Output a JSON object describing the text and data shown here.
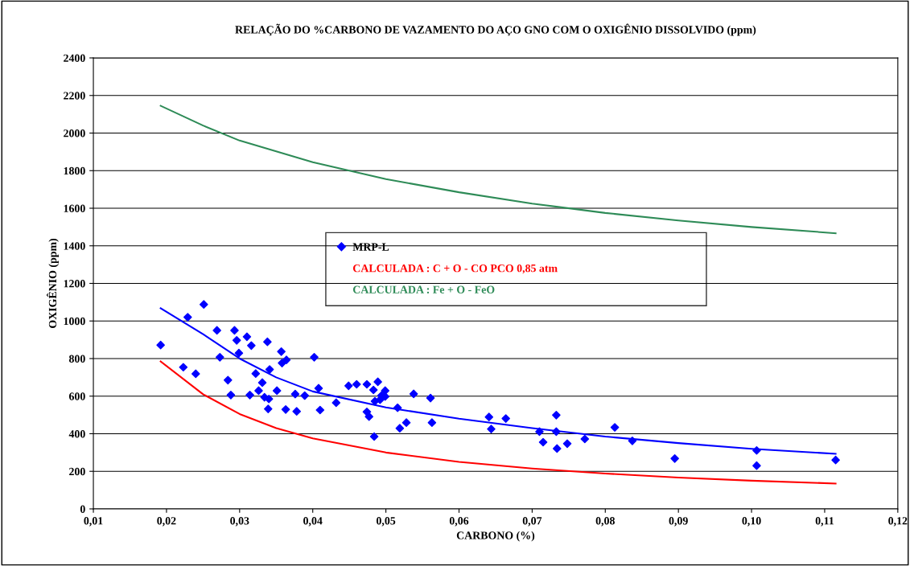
{
  "chart_data": {
    "type": "scatter",
    "title": "RELAÇÃO DO %CARBONO DE VAZAMENTO DO AÇO GNO COM O OXIGÊNIO DISSOLVIDO (ppm)",
    "xlabel": "CARBONO (%)",
    "ylabel": "OXIGÊNIO (ppm)",
    "xlim": [
      0.01,
      0.12
    ],
    "xticks": [
      {
        "value": 0.01,
        "label": "0,01"
      },
      {
        "value": 0.02,
        "label": "0,02"
      },
      {
        "value": 0.03,
        "label": "0,03"
      },
      {
        "value": 0.04,
        "label": "0,04"
      },
      {
        "value": 0.05,
        "label": "0,05"
      },
      {
        "value": 0.06,
        "label": "0,06"
      },
      {
        "value": 0.07,
        "label": "0,07"
      },
      {
        "value": 0.08,
        "label": "0,08"
      },
      {
        "value": 0.09,
        "label": "0,09"
      },
      {
        "value": 0.1,
        "label": "0,10"
      },
      {
        "value": 0.11,
        "label": "0,11"
      },
      {
        "value": 0.12,
        "label": "0,12"
      }
    ],
    "ylim": [
      0,
      2400
    ],
    "yticks": [
      0,
      200,
      400,
      600,
      800,
      1000,
      1200,
      1400,
      1600,
      1800,
      2000,
      2200,
      2400
    ],
    "grid": "y",
    "legend": "center",
    "series": [
      {
        "name": "MRP-L",
        "color": "#0000ff",
        "marker": "diamond",
        "x": [
          0.0192,
          0.0229,
          0.0251,
          0.0223,
          0.024,
          0.0269,
          0.0273,
          0.0284,
          0.0288,
          0.0293,
          0.0296,
          0.0299,
          0.031,
          0.0316,
          0.0314,
          0.0322,
          0.0326,
          0.0331,
          0.0334,
          0.0338,
          0.034,
          0.0339,
          0.0351,
          0.0341,
          0.0357,
          0.0358,
          0.0364,
          0.0363,
          0.0376,
          0.0378,
          0.0389,
          0.0402,
          0.0408,
          0.041,
          0.0432,
          0.0449,
          0.046,
          0.0474,
          0.0474,
          0.0477,
          0.0483,
          0.0489,
          0.0485,
          0.0492,
          0.0494,
          0.0499,
          0.0499,
          0.0484,
          0.0516,
          0.0538,
          0.0528,
          0.0519,
          0.0561,
          0.0563,
          0.0641,
          0.0644,
          0.0664,
          0.071,
          0.0715,
          0.0733,
          0.0733,
          0.0734,
          0.0748,
          0.0772,
          0.0813,
          0.0837,
          0.0895,
          0.1007,
          0.1007,
          0.1115
        ],
        "values": [
          872,
          1020,
          1088,
          754,
          719,
          950,
          807,
          685,
          606,
          950,
          897,
          829,
          916,
          869,
          606,
          720,
          629,
          672,
          594,
          889,
          585,
          532,
          629,
          742,
          837,
          776,
          793,
          529,
          611,
          519,
          603,
          807,
          642,
          526,
          565,
          655,
          663,
          663,
          516,
          491,
          633,
          676,
          573,
          581,
          603,
          629,
          598,
          385,
          538,
          612,
          459,
          429,
          590,
          459,
          489,
          425,
          481,
          411,
          355,
          499,
          411,
          321,
          347,
          372,
          434,
          362,
          268,
          311,
          230,
          260
        ]
      },
      {
        "type": "line",
        "name": "CALCULADA : C + O - CO PCO 0,85 atm",
        "color": "#ff0000",
        "x": [
          0.0192,
          0.025,
          0.03,
          0.035,
          0.04,
          0.05,
          0.06,
          0.07,
          0.08,
          0.09,
          0.1,
          0.1115
        ],
        "values": [
          785,
          610,
          505,
          430,
          375,
          300,
          250,
          215,
          188,
          167,
          150,
          135
        ]
      },
      {
        "type": "line",
        "name": "CALCULADA : Fe + O - FeO",
        "color": "#2e8b57",
        "x": [
          0.0192,
          0.025,
          0.03,
          0.04,
          0.05,
          0.06,
          0.07,
          0.08,
          0.09,
          0.1,
          0.1115
        ],
        "values": [
          2145,
          2040,
          1960,
          1845,
          1755,
          1685,
          1625,
          1575,
          1535,
          1500,
          1467
        ]
      },
      {
        "type": "line",
        "color": "#0000ff",
        "x": [
          0.0192,
          0.025,
          0.03,
          0.035,
          0.04,
          0.05,
          0.06,
          0.07,
          0.08,
          0.09,
          0.1,
          0.1115
        ],
        "values": [
          1068,
          930,
          800,
          700,
          625,
          540,
          480,
          430,
          385,
          350,
          320,
          293
        ]
      }
    ]
  }
}
